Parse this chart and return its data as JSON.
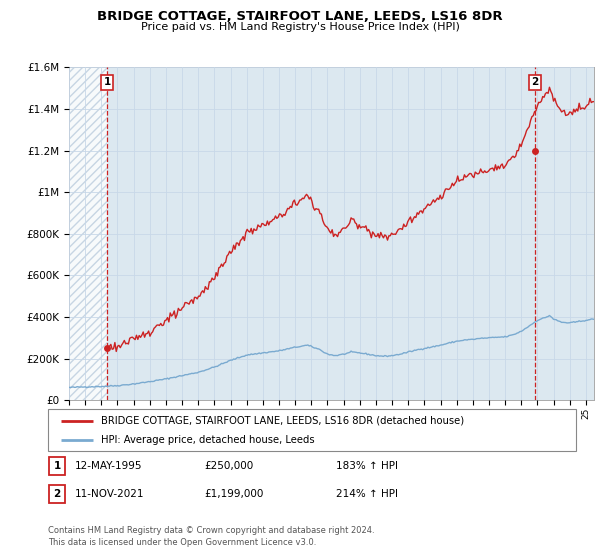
{
  "title": "BRIDGE COTTAGE, STAIRFOOT LANE, LEEDS, LS16 8DR",
  "subtitle": "Price paid vs. HM Land Registry's House Price Index (HPI)",
  "ylim": [
    0,
    1600000
  ],
  "yticks": [
    0,
    200000,
    400000,
    600000,
    800000,
    1000000,
    1200000,
    1400000,
    1600000
  ],
  "ytick_labels": [
    "£0",
    "£200K",
    "£400K",
    "£600K",
    "£800K",
    "£1M",
    "£1.2M",
    "£1.4M",
    "£1.6M"
  ],
  "hpi_color": "#7aaad0",
  "price_color": "#cc2222",
  "grid_color": "#c8d8e8",
  "bg_color": "#dce8f0",
  "sale1_date": 1995.36,
  "sale1_price": 250000,
  "sale2_date": 2021.86,
  "sale2_price": 1199000,
  "sale1_display_date": "12-MAY-1995",
  "sale1_display_price": "£250,000",
  "sale1_hpi_pct": "183% ↑ HPI",
  "sale2_display_date": "11-NOV-2021",
  "sale2_display_price": "£1,199,000",
  "sale2_hpi_pct": "214% ↑ HPI",
  "legend_label1": "BRIDGE COTTAGE, STAIRFOOT LANE, LEEDS, LS16 8DR (detached house)",
  "legend_label2": "HPI: Average price, detached house, Leeds",
  "footer": "Contains HM Land Registry data © Crown copyright and database right 2024.\nThis data is licensed under the Open Government Licence v3.0.",
  "xmin": 1993.0,
  "xmax": 2025.5
}
